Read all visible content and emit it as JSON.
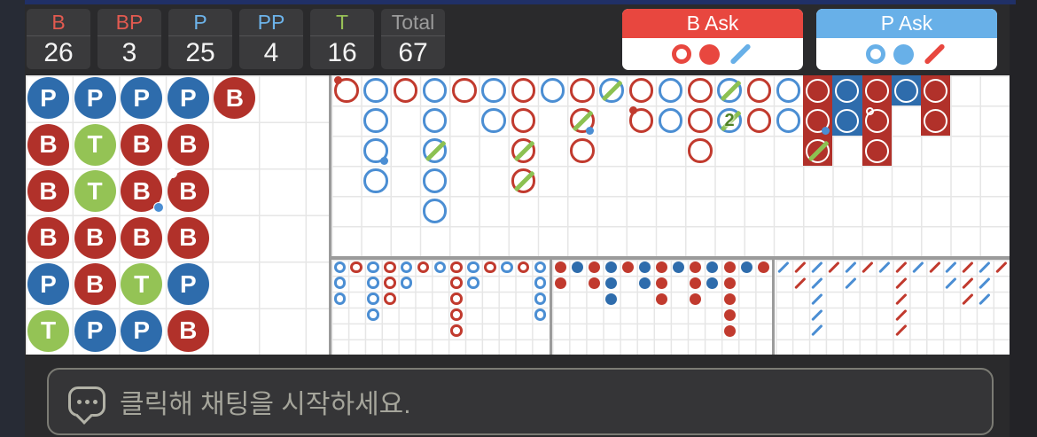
{
  "colors": {
    "banker": "#b1312a",
    "player": "#2e6cac",
    "tie": "#94c355",
    "big_red": "#c13a2e",
    "big_blue": "#4b8ed3",
    "tie_green": "#8cc152",
    "ask_red": "#e8473f",
    "ask_blue": "#68b0e8"
  },
  "header": {
    "stats": [
      {
        "label": "B",
        "value": "26",
        "color": "red"
      },
      {
        "label": "BP",
        "value": "3",
        "color": "red"
      },
      {
        "label": "P",
        "value": "25",
        "color": "blue"
      },
      {
        "label": "PP",
        "value": "4",
        "color": "blue"
      },
      {
        "label": "T",
        "value": "16",
        "color": "green"
      },
      {
        "label": "Total",
        "value": "67",
        "color": "gray"
      }
    ],
    "ask_buttons": [
      {
        "label": "B Ask",
        "icons": [
          "red-hollow-circle",
          "red-solid-circle",
          "blue-slash"
        ]
      },
      {
        "label": "P Ask",
        "icons": [
          "blue-hollow-circle",
          "blue-solid-circle",
          "red-slash"
        ]
      }
    ]
  },
  "boards": {
    "bead_plate": {
      "rows": 6,
      "cols": 6,
      "cells": [
        {
          "r": 1,
          "c": 1,
          "v": "P"
        },
        {
          "r": 1,
          "c": 2,
          "v": "P"
        },
        {
          "r": 1,
          "c": 3,
          "v": "P"
        },
        {
          "r": 1,
          "c": 4,
          "v": "P"
        },
        {
          "r": 1,
          "c": 5,
          "v": "B"
        },
        {
          "r": 2,
          "c": 1,
          "v": "B"
        },
        {
          "r": 2,
          "c": 2,
          "v": "T"
        },
        {
          "r": 2,
          "c": 3,
          "v": "B"
        },
        {
          "r": 2,
          "c": 4,
          "v": "B"
        },
        {
          "r": 3,
          "c": 1,
          "v": "B"
        },
        {
          "r": 3,
          "c": 2,
          "v": "T"
        },
        {
          "r": 3,
          "c": 3,
          "v": "B",
          "pp": 1
        },
        {
          "r": 3,
          "c": 4,
          "v": "B",
          "wp": 1
        },
        {
          "r": 4,
          "c": 1,
          "v": "B"
        },
        {
          "r": 4,
          "c": 2,
          "v": "B"
        },
        {
          "r": 4,
          "c": 3,
          "v": "B"
        },
        {
          "r": 4,
          "c": 4,
          "v": "B"
        },
        {
          "r": 5,
          "c": 1,
          "v": "P"
        },
        {
          "r": 5,
          "c": 2,
          "v": "B"
        },
        {
          "r": 5,
          "c": 3,
          "v": "T"
        },
        {
          "r": 5,
          "c": 4,
          "v": "P"
        },
        {
          "r": 6,
          "c": 1,
          "v": "T"
        },
        {
          "r": 6,
          "c": 2,
          "v": "P"
        },
        {
          "r": 6,
          "c": 3,
          "v": "P"
        },
        {
          "r": 6,
          "c": 4,
          "v": "B"
        }
      ]
    },
    "big_road": {
      "rows": 6,
      "cols": 23,
      "cells": [
        {
          "r": 1,
          "c": 1,
          "k": "r",
          "bp": 1
        },
        {
          "r": 1,
          "c": 2,
          "k": "b"
        },
        {
          "r": 1,
          "c": 3,
          "k": "r"
        },
        {
          "r": 1,
          "c": 4,
          "k": "b"
        },
        {
          "r": 1,
          "c": 5,
          "k": "r"
        },
        {
          "r": 1,
          "c": 6,
          "k": "b"
        },
        {
          "r": 1,
          "c": 7,
          "k": "r"
        },
        {
          "r": 1,
          "c": 8,
          "k": "b"
        },
        {
          "r": 1,
          "c": 9,
          "k": "r"
        },
        {
          "r": 1,
          "c": 10,
          "k": "b",
          "t": 1
        },
        {
          "r": 1,
          "c": 11,
          "k": "r"
        },
        {
          "r": 1,
          "c": 12,
          "k": "b"
        },
        {
          "r": 1,
          "c": 13,
          "k": "r"
        },
        {
          "r": 1,
          "c": 14,
          "k": "b",
          "t": 1
        },
        {
          "r": 1,
          "c": 15,
          "k": "r"
        },
        {
          "r": 1,
          "c": 16,
          "k": "b"
        },
        {
          "r": 1,
          "c": 17,
          "k": "rf"
        },
        {
          "r": 1,
          "c": 18,
          "k": "bf"
        },
        {
          "r": 1,
          "c": 19,
          "k": "rf"
        },
        {
          "r": 1,
          "c": 20,
          "k": "bf"
        },
        {
          "r": 1,
          "c": 21,
          "k": "rf"
        },
        {
          "r": 2,
          "c": 2,
          "k": "b"
        },
        {
          "r": 2,
          "c": 4,
          "k": "b"
        },
        {
          "r": 2,
          "c": 6,
          "k": "b"
        },
        {
          "r": 2,
          "c": 7,
          "k": "r"
        },
        {
          "r": 2,
          "c": 9,
          "k": "r",
          "t": 1,
          "pp": 1
        },
        {
          "r": 2,
          "c": 11,
          "k": "r",
          "bp": 1
        },
        {
          "r": 2,
          "c": 12,
          "k": "b"
        },
        {
          "r": 2,
          "c": 13,
          "k": "r"
        },
        {
          "r": 2,
          "c": 14,
          "k": "b",
          "t": 1,
          "n": "2"
        },
        {
          "r": 2,
          "c": 15,
          "k": "r"
        },
        {
          "r": 2,
          "c": 16,
          "k": "b"
        },
        {
          "r": 2,
          "c": 17,
          "k": "rf",
          "pp": 1
        },
        {
          "r": 2,
          "c": 18,
          "k": "bf"
        },
        {
          "r": 2,
          "c": 19,
          "k": "rf",
          "wp": 1
        },
        {
          "r": 2,
          "c": 21,
          "k": "rf"
        },
        {
          "r": 3,
          "c": 2,
          "k": "b",
          "pp": 1
        },
        {
          "r": 3,
          "c": 4,
          "k": "b",
          "t": 1
        },
        {
          "r": 3,
          "c": 7,
          "k": "r",
          "t": 1
        },
        {
          "r": 3,
          "c": 9,
          "k": "r"
        },
        {
          "r": 3,
          "c": 13,
          "k": "r"
        },
        {
          "r": 3,
          "c": 17,
          "k": "rf",
          "t": 1
        },
        {
          "r": 3,
          "c": 19,
          "k": "rf"
        },
        {
          "r": 4,
          "c": 2,
          "k": "b"
        },
        {
          "r": 4,
          "c": 4,
          "k": "b"
        },
        {
          "r": 4,
          "c": 7,
          "k": "r",
          "t": 1
        },
        {
          "r": 5,
          "c": 4,
          "k": "b"
        }
      ]
    },
    "big_eye_boy": {
      "rows": 6,
      "cols": 13,
      "cells": [
        [
          1,
          1,
          "b"
        ],
        [
          1,
          2,
          "r"
        ],
        [
          1,
          3,
          "b"
        ],
        [
          1,
          4,
          "r"
        ],
        [
          1,
          5,
          "b"
        ],
        [
          1,
          6,
          "r"
        ],
        [
          1,
          7,
          "b"
        ],
        [
          1,
          8,
          "r"
        ],
        [
          1,
          9,
          "b"
        ],
        [
          1,
          10,
          "r"
        ],
        [
          1,
          11,
          "b"
        ],
        [
          1,
          12,
          "r"
        ],
        [
          1,
          13,
          "b"
        ],
        [
          2,
          1,
          "b"
        ],
        [
          2,
          3,
          "b"
        ],
        [
          2,
          4,
          "r"
        ],
        [
          2,
          5,
          "b"
        ],
        [
          2,
          8,
          "r"
        ],
        [
          2,
          9,
          "b"
        ],
        [
          2,
          13,
          "b"
        ],
        [
          3,
          1,
          "b"
        ],
        [
          3,
          3,
          "b"
        ],
        [
          3,
          4,
          "r"
        ],
        [
          3,
          8,
          "r"
        ],
        [
          3,
          13,
          "b"
        ],
        [
          4,
          3,
          "b"
        ],
        [
          4,
          8,
          "r"
        ],
        [
          4,
          13,
          "b"
        ],
        [
          5,
          8,
          "r"
        ]
      ]
    },
    "small_road": {
      "rows": 6,
      "cols": 13,
      "cells": [
        [
          1,
          1,
          "r"
        ],
        [
          1,
          2,
          "b"
        ],
        [
          1,
          3,
          "r"
        ],
        [
          1,
          4,
          "b"
        ],
        [
          1,
          5,
          "r"
        ],
        [
          1,
          6,
          "b"
        ],
        [
          1,
          7,
          "r"
        ],
        [
          1,
          8,
          "b"
        ],
        [
          1,
          9,
          "r"
        ],
        [
          1,
          10,
          "b"
        ],
        [
          1,
          11,
          "r"
        ],
        [
          1,
          12,
          "b"
        ],
        [
          1,
          13,
          "r"
        ],
        [
          2,
          1,
          "r"
        ],
        [
          2,
          3,
          "r"
        ],
        [
          2,
          4,
          "b"
        ],
        [
          2,
          6,
          "b"
        ],
        [
          2,
          7,
          "r"
        ],
        [
          2,
          9,
          "r"
        ],
        [
          2,
          10,
          "b"
        ],
        [
          2,
          11,
          "r"
        ],
        [
          3,
          4,
          "b"
        ],
        [
          3,
          7,
          "r"
        ],
        [
          3,
          9,
          "r"
        ],
        [
          3,
          11,
          "r"
        ],
        [
          4,
          11,
          "r"
        ],
        [
          5,
          11,
          "r"
        ]
      ]
    },
    "cockroach_pig": {
      "rows": 6,
      "cols": 14,
      "cells": [
        [
          1,
          1,
          "b"
        ],
        [
          1,
          2,
          "r"
        ],
        [
          1,
          3,
          "b"
        ],
        [
          1,
          4,
          "r"
        ],
        [
          1,
          5,
          "b"
        ],
        [
          1,
          6,
          "r"
        ],
        [
          1,
          7,
          "b"
        ],
        [
          1,
          8,
          "r"
        ],
        [
          1,
          9,
          "b"
        ],
        [
          1,
          10,
          "r"
        ],
        [
          1,
          11,
          "b"
        ],
        [
          1,
          12,
          "r"
        ],
        [
          1,
          13,
          "b"
        ],
        [
          1,
          14,
          "r"
        ],
        [
          2,
          2,
          "r"
        ],
        [
          2,
          3,
          "b"
        ],
        [
          2,
          5,
          "b"
        ],
        [
          2,
          8,
          "r"
        ],
        [
          2,
          11,
          "b"
        ],
        [
          2,
          12,
          "r"
        ],
        [
          2,
          13,
          "b"
        ],
        [
          3,
          3,
          "b"
        ],
        [
          3,
          8,
          "r"
        ],
        [
          3,
          12,
          "r"
        ],
        [
          3,
          13,
          "b"
        ],
        [
          4,
          3,
          "b"
        ],
        [
          4,
          8,
          "r"
        ],
        [
          5,
          3,
          "b"
        ],
        [
          5,
          8,
          "r"
        ]
      ]
    }
  },
  "chat": {
    "placeholder": "클릭해 채팅을 시작하세요."
  }
}
